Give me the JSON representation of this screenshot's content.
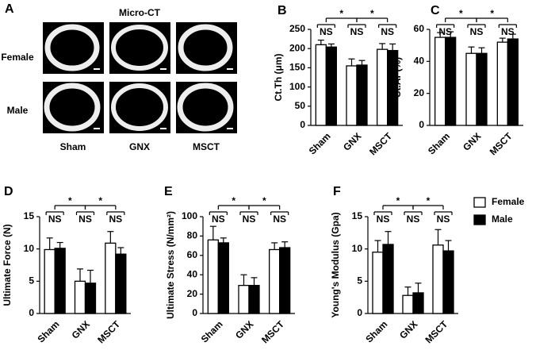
{
  "panel_a": {
    "panel": "A",
    "title": "Micro-CT",
    "rows": [
      "Female",
      "Male"
    ],
    "columns": [
      "Sham",
      "GNX",
      "MSCT"
    ]
  },
  "chart_data": [
    {
      "type": "bar",
      "panel": "B",
      "ylabel": "Ct.Th (μm)",
      "categories": [
        "Sham",
        "GNX",
        "MSCT"
      ],
      "series": [
        {
          "color": "#ffffff",
          "values": [
            210,
            155,
            198
          ],
          "errors": [
            12,
            18,
            15
          ]
        },
        {
          "color": "#000000",
          "values": [
            204,
            157,
            195
          ],
          "errors": [
            8,
            12,
            17
          ]
        }
      ],
      "ylim": [
        0,
        250
      ],
      "yticks": [
        0,
        50,
        100,
        150,
        200,
        250
      ],
      "pair_labels": [
        "NS",
        "NS",
        "NS"
      ],
      "group_labels": [
        "*",
        "*"
      ]
    },
    {
      "type": "bar",
      "panel": "C",
      "ylabel": "Ct.Ar (%)",
      "categories": [
        "Sham",
        "GNX",
        "MSCT"
      ],
      "series": [
        {
          "color": "#ffffff",
          "values": [
            55,
            45,
            52
          ],
          "errors": [
            3,
            4,
            2.5
          ]
        },
        {
          "color": "#000000",
          "values": [
            55,
            45,
            54
          ],
          "errors": [
            3.5,
            3.5,
            3
          ]
        }
      ],
      "ylim": [
        0,
        60
      ],
      "yticks": [
        0,
        20,
        40,
        60
      ],
      "pair_labels": [
        "NS",
        "NS",
        "NS"
      ],
      "group_labels": [
        "*",
        "*"
      ]
    },
    {
      "type": "bar",
      "panel": "D",
      "ylabel": "Ultimate Force (N)",
      "categories": [
        "Sham",
        "GNX",
        "MSCT"
      ],
      "series": [
        {
          "color": "#ffffff",
          "values": [
            9.9,
            5.0,
            10.9
          ],
          "errors": [
            1.8,
            1.9,
            1.8
          ]
        },
        {
          "color": "#000000",
          "values": [
            10.1,
            4.7,
            9.2
          ],
          "errors": [
            0.9,
            2.0,
            1.0
          ]
        }
      ],
      "ylim": [
        0,
        15
      ],
      "yticks": [
        0,
        5,
        10,
        15
      ],
      "pair_labels": [
        "NS",
        "NS",
        "NS"
      ],
      "group_labels": [
        "*",
        "*"
      ]
    },
    {
      "type": "bar",
      "panel": "E",
      "ylabel": "Ultimate Stress (N/mm²)",
      "categories": [
        "Sham",
        "GNX",
        "MSCT"
      ],
      "series": [
        {
          "color": "#ffffff",
          "values": [
            76,
            29,
            66
          ],
          "errors": [
            14,
            11,
            7
          ]
        },
        {
          "color": "#000000",
          "values": [
            73,
            29,
            68
          ],
          "errors": [
            5,
            8,
            6
          ]
        }
      ],
      "ylim": [
        0,
        100
      ],
      "yticks": [
        0,
        20,
        40,
        60,
        80,
        100
      ],
      "pair_labels": [
        "NS",
        "NS",
        "NS"
      ],
      "group_labels": [
        "*",
        "*"
      ]
    },
    {
      "type": "bar",
      "panel": "F",
      "ylabel": "Young's Modulus (Gpa)",
      "categories": [
        "Sham",
        "GNX",
        "MSCT"
      ],
      "series": [
        {
          "name": "Female",
          "color": "#ffffff",
          "values": [
            9.5,
            2.8,
            10.6
          ],
          "errors": [
            1.8,
            1.3,
            2.4
          ]
        },
        {
          "name": "Male",
          "color": "#000000",
          "values": [
            10.7,
            3.2,
            9.7
          ],
          "errors": [
            2.0,
            1.5,
            1.6
          ]
        }
      ],
      "ylim": [
        0,
        15
      ],
      "yticks": [
        0,
        5,
        10,
        15
      ],
      "legend": "right",
      "pair_labels": [
        "NS",
        "NS",
        "NS"
      ],
      "group_labels": [
        "*",
        "*"
      ]
    }
  ]
}
